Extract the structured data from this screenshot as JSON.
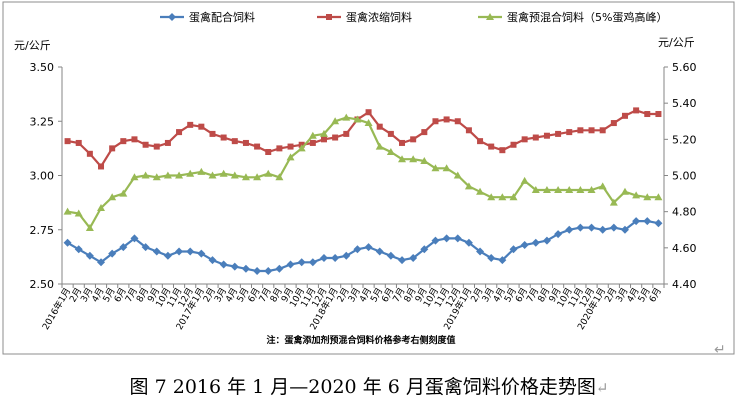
{
  "chart_data": {
    "type": "line",
    "legend_position": "top",
    "grid": false,
    "y_left_label": "元/公斤",
    "y_right_label": "元/公斤",
    "ylim_left": [
      2.5,
      3.5
    ],
    "ylim_right": [
      4.4,
      5.6
    ],
    "yticks_left": [
      "3.50",
      "3.25",
      "3.00",
      "2.75",
      "2.50"
    ],
    "yticks_left_values": [
      3.5,
      3.25,
      3.0,
      2.75,
      2.5
    ],
    "yticks_right": [
      "5.60",
      "5.40",
      "5.20",
      "5.00",
      "4.80",
      "4.60",
      "4.40"
    ],
    "yticks_right_values": [
      5.6,
      5.4,
      5.2,
      5.0,
      4.8,
      4.6,
      4.4
    ],
    "x_labels": [
      "2016年1月",
      "2月",
      "3月",
      "4月",
      "5月",
      "6月",
      "7月",
      "8月",
      "9月",
      "10月",
      "11月",
      "12月",
      "2017年1月",
      "2月",
      "3月",
      "4月",
      "5月",
      "6月",
      "7月",
      "8月",
      "9月",
      "10月",
      "11月",
      "12月",
      "2018年1月",
      "2月",
      "3月",
      "4月",
      "5月",
      "6月",
      "7月",
      "8月",
      "9月",
      "10月",
      "11月",
      "12月",
      "2019年1月",
      "2月",
      "3月",
      "4月",
      "5月",
      "6月",
      "7月",
      "8月",
      "9月",
      "10月",
      "11月",
      "12月",
      "2020年1月",
      "2月",
      "3月",
      "4月",
      "5月",
      "6月"
    ],
    "series": [
      {
        "name": "蛋禽配合饲料",
        "axis": "left",
        "color": "#4a7ebb",
        "marker": "diamond",
        "values": [
          2.69,
          2.66,
          2.63,
          2.6,
          2.64,
          2.67,
          2.71,
          2.67,
          2.65,
          2.63,
          2.65,
          2.65,
          2.64,
          2.61,
          2.59,
          2.58,
          2.57,
          2.56,
          2.56,
          2.57,
          2.59,
          2.6,
          2.6,
          2.62,
          2.62,
          2.63,
          2.66,
          2.67,
          2.65,
          2.63,
          2.61,
          2.62,
          2.66,
          2.7,
          2.71,
          2.71,
          2.69,
          2.65,
          2.62,
          2.61,
          2.66,
          2.68,
          2.69,
          2.7,
          2.73,
          2.75,
          2.76,
          2.76,
          2.75,
          2.76,
          2.75,
          2.79,
          2.79,
          2.78
        ]
      },
      {
        "name": "蛋禽浓缩饲料",
        "axis": "right",
        "color": "#be4b48",
        "marker": "square",
        "values": [
          5.19,
          5.18,
          5.12,
          5.05,
          5.15,
          5.19,
          5.2,
          5.17,
          5.16,
          5.18,
          5.24,
          5.28,
          5.27,
          5.23,
          5.21,
          5.19,
          5.18,
          5.16,
          5.13,
          5.15,
          5.16,
          5.17,
          5.18,
          5.2,
          5.21,
          5.23,
          5.31,
          5.35,
          5.27,
          5.23,
          5.18,
          5.2,
          5.24,
          5.3,
          5.31,
          5.3,
          5.25,
          5.19,
          5.16,
          5.14,
          5.17,
          5.2,
          5.21,
          5.22,
          5.23,
          5.24,
          5.25,
          5.25,
          5.25,
          5.29,
          5.33,
          5.36,
          5.34,
          5.34
        ]
      },
      {
        "name": "蛋禽预混合饲料（5%蛋鸡高峰）",
        "axis": "right",
        "color": "#98b954",
        "marker": "triangle",
        "values": [
          4.8,
          4.79,
          4.71,
          4.82,
          4.88,
          4.9,
          4.99,
          5.0,
          4.99,
          5.0,
          5.0,
          5.01,
          5.02,
          5.0,
          5.01,
          5.0,
          4.99,
          4.99,
          5.01,
          4.99,
          5.1,
          5.15,
          5.22,
          5.23,
          5.3,
          5.32,
          5.31,
          5.29,
          5.16,
          5.13,
          5.09,
          5.09,
          5.08,
          5.04,
          5.04,
          5.0,
          4.94,
          4.91,
          4.88,
          4.88,
          4.88,
          4.97,
          4.92,
          4.92,
          4.92,
          4.92,
          4.92,
          4.92,
          4.94,
          4.85,
          4.91,
          4.89,
          4.88,
          4.88
        ]
      }
    ],
    "footnote": "注：蛋禽添加剂预混合饲料价格参考右侧刻度值"
  },
  "caption": {
    "fig_num": "图 7",
    "text": "2016 年 1 月—2020 年 6 月蛋禽饲料价格走势图",
    "return_mark": "↵"
  },
  "frame_return_mark": "↵"
}
